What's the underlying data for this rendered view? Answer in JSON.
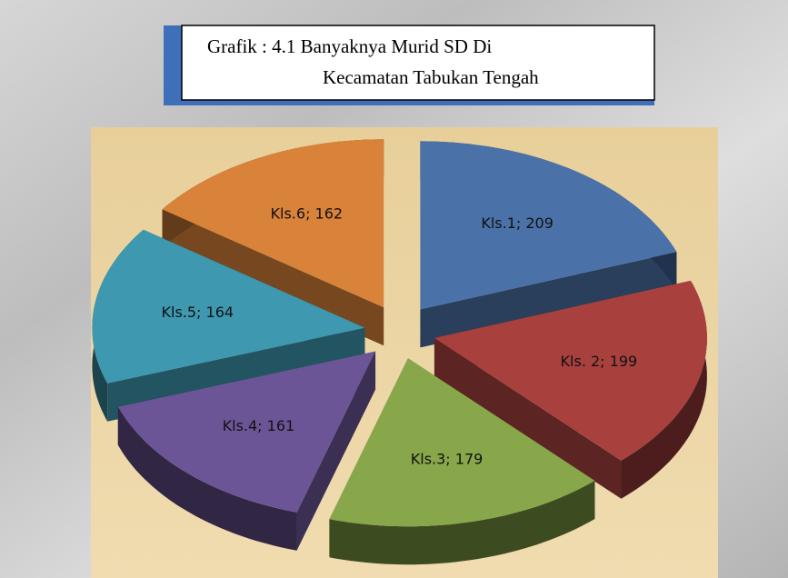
{
  "chart_data": {
    "type": "pie3d",
    "title": [
      "Grafik : 4.1 Banyaknya Murid SD Di",
      "Kecamatan Tabukan Tengah"
    ],
    "values": [
      209,
      199,
      179,
      161,
      164,
      162
    ],
    "value_labels": [
      "Kls.1; 209",
      "Kls. 2; 199",
      "Kls.3; 179",
      "Kls.4; 161",
      "Kls.5; 164",
      "Kls.6; 162"
    ],
    "colors": [
      "#4a72a8",
      "#a8413e",
      "#88a64a",
      "#6c5596",
      "#3d98b0",
      "#d9823a"
    ],
    "exploded": true
  }
}
